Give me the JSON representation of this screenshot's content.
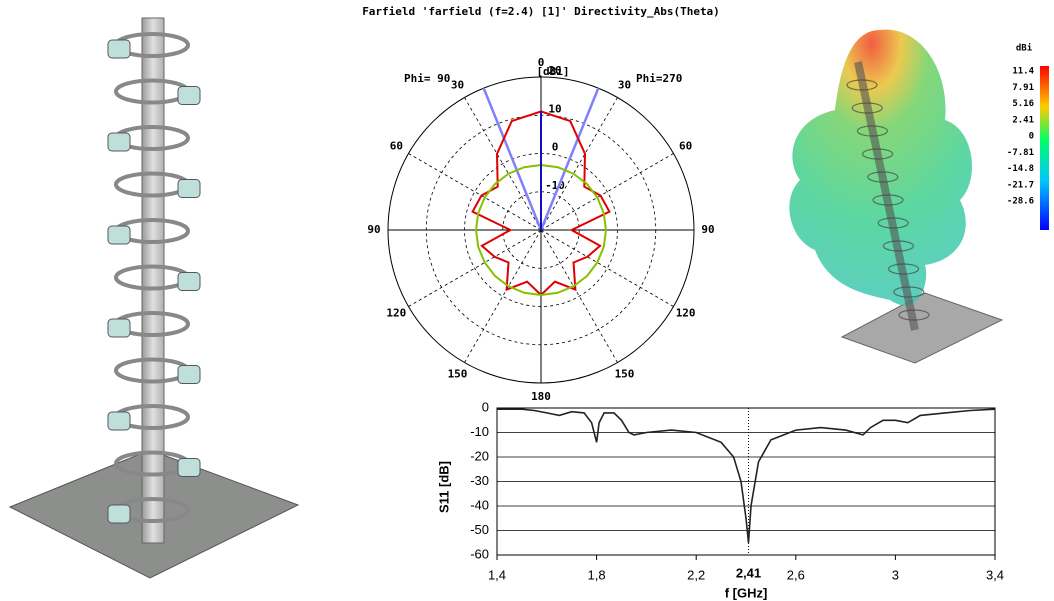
{
  "chart_data": [
    {
      "type": "polar",
      "title": "Farfield 'farfield (f=2.4) [1]' Directivity_Abs(Theta)",
      "unit": "[dBi]",
      "phi_labels": [
        "Phi= 90",
        "Phi=270"
      ],
      "theta": [
        0,
        15,
        30,
        45,
        60,
        75,
        90,
        105,
        120,
        135,
        150,
        165,
        180,
        195,
        210,
        225,
        240,
        255,
        270,
        285,
        300,
        315,
        330,
        345,
        360
      ],
      "series": [
        {
          "color": "#e00000",
          "values": [
            11,
            9.5,
            3,
            -4,
            -2,
            -1.5,
            -12,
            -4,
            -6,
            -8,
            -2,
            -6,
            -3,
            -6,
            -2,
            -8,
            -6,
            -4,
            -12,
            -1.5,
            -2,
            -4,
            3,
            9.5,
            11
          ]
        },
        {
          "color": "#88c000",
          "values": [
            -3,
            -3,
            -3,
            -3,
            -3,
            -3,
            -3,
            -3,
            -3,
            -3,
            -3,
            -3,
            -3,
            -3,
            -3,
            -3,
            -3,
            -3,
            -3,
            -3,
            -3,
            -3,
            -3,
            -3,
            -3
          ]
        }
      ],
      "beam_theta": [
        22,
        338
      ],
      "beam_color": "#8080ff",
      "rlim": [
        -20,
        20
      ],
      "rticks": [
        -10,
        0,
        10,
        20
      ],
      "thetaticks": [
        {
          "value": 0,
          "label": "0"
        },
        {
          "value": 30,
          "label": "30"
        },
        {
          "value": 60,
          "label": "60"
        },
        {
          "value": 90,
          "label": "90"
        },
        {
          "value": 120,
          "label": "120"
        },
        {
          "value": 150,
          "label": "150"
        },
        {
          "value": 180,
          "label": "180"
        },
        {
          "value": 210,
          "label": "150"
        },
        {
          "value": 240,
          "label": "120"
        },
        {
          "value": 270,
          "label": "90"
        },
        {
          "value": 300,
          "label": "60"
        },
        {
          "value": 330,
          "label": "30"
        }
      ]
    },
    {
      "type": "line",
      "xlabel": "f [GHz]",
      "ylabel": "S11 [dB]",
      "color": "#222222",
      "x": [
        1.4,
        1.5,
        1.55,
        1.6,
        1.65,
        1.7,
        1.75,
        1.78,
        1.8,
        1.81,
        1.83,
        1.87,
        1.9,
        1.93,
        1.95,
        2.0,
        2.1,
        2.2,
        2.3,
        2.35,
        2.38,
        2.4,
        2.41,
        2.42,
        2.45,
        2.5,
        2.6,
        2.7,
        2.8,
        2.87,
        2.9,
        2.95,
        3.0,
        3.05,
        3.1,
        3.2,
        3.3,
        3.4
      ],
      "values": [
        -0.5,
        -0.5,
        -1,
        -2,
        -3,
        -1.5,
        -2,
        -6,
        -14,
        -6,
        -2,
        -2,
        -5,
        -10,
        -11,
        -10,
        -9,
        -10,
        -14,
        -20,
        -30,
        -45,
        -55,
        -40,
        -22,
        -13,
        -9,
        -8,
        -9,
        -11,
        -8,
        -5,
        -5,
        -6,
        -3,
        -2,
        -1,
        -0.5
      ],
      "xlim": [
        1.4,
        3.4
      ],
      "ylim": [
        -60,
        0
      ],
      "xticks": [
        {
          "value": 1.4,
          "label": "1,4"
        },
        {
          "value": 1.8,
          "label": "1,8"
        },
        {
          "value": 2.2,
          "label": "2,2"
        },
        {
          "value": 2.6,
          "label": "2,6"
        },
        3,
        {
          "value": 3.4,
          "label": "3,4"
        }
      ],
      "yticks": [
        0,
        -10,
        -20,
        -30,
        -40,
        -50,
        -60
      ],
      "marker": {
        "value": 2.41,
        "label": "2,41"
      },
      "grid": true
    },
    {
      "type": "colorbar",
      "unit": "dBi",
      "ticks": [
        11.4,
        7.91,
        5.16,
        2.41,
        0,
        -7.81,
        -14.8,
        -21.7,
        -28.6
      ]
    }
  ]
}
